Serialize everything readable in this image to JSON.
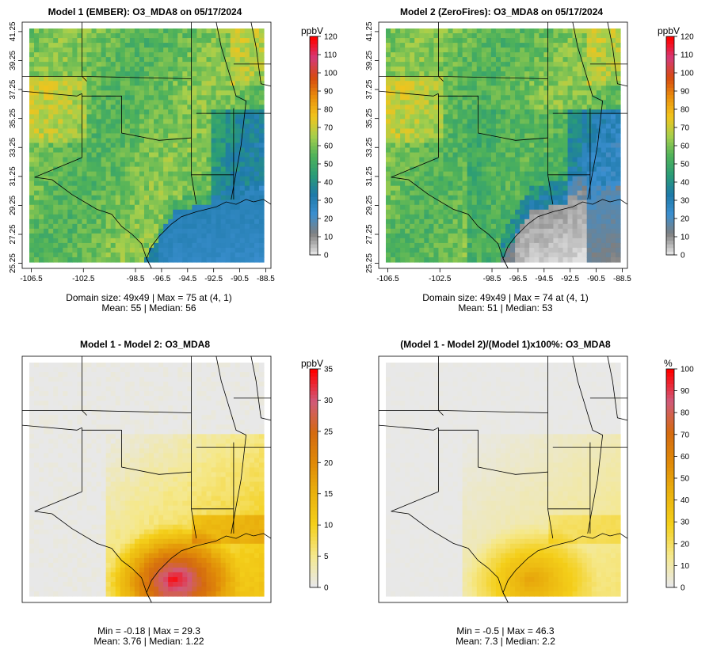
{
  "colors": {
    "abs_scale": [
      "#e0e0e0",
      "#7f7f7f",
      "#3b8fd0",
      "#1e7aa8",
      "#2a9c77",
      "#4fb25a",
      "#a6cf4c",
      "#f2c41c",
      "#ea8f0c",
      "#d64a10",
      "#d43a78",
      "#ff0000"
    ],
    "diff_scale": [
      "#e8e8e8",
      "#f5e88a",
      "#f4cf1a",
      "#eab20e",
      "#e08a08",
      "#d46a10",
      "#d05a7a",
      "#ff0000"
    ]
  },
  "panels": [
    {
      "id": "m1",
      "title": "Model 1 (EMBER): O3_MDA8 on 05/17/2024",
      "unit": "ppbV",
      "stats_line1": "Domain size: 49x49 | Max = 75 at (4, 1)",
      "stats_line2": "Mean: 55 |  Median: 56",
      "chart_data": {
        "type": "heatmap",
        "variable": "O3_MDA8",
        "units": "ppbV",
        "grid": [
          49,
          49
        ],
        "max": 75,
        "max_location": [
          4,
          1
        ],
        "mean": 55,
        "median": 56,
        "colorbar_ticks": [
          0,
          10,
          20,
          30,
          40,
          50,
          60,
          70,
          80,
          90,
          100,
          110,
          120
        ],
        "x_ticks": [
          "-106.5",
          "-102.5",
          "-98.5",
          "-96.5",
          "-94.5",
          "-92.5",
          "-90.5",
          "-88.5"
        ],
        "y_ticks": [
          "25.25",
          "27.25",
          "29.25",
          "31.25",
          "33.25",
          "35.25",
          "37.25",
          "39.25",
          "41.25"
        ]
      }
    },
    {
      "id": "m2",
      "title": "Model 2 (ZeroFires): O3_MDA8 on 05/17/2024",
      "unit": "ppbV",
      "stats_line1": "Domain size: 49x49 | Max = 74 at (4, 1)",
      "stats_line2": "Mean: 51 |  Median: 53",
      "chart_data": {
        "type": "heatmap",
        "variable": "O3_MDA8",
        "units": "ppbV",
        "grid": [
          49,
          49
        ],
        "max": 74,
        "max_location": [
          4,
          1
        ],
        "mean": 51,
        "median": 53,
        "colorbar_ticks": [
          0,
          10,
          20,
          30,
          40,
          50,
          60,
          70,
          80,
          90,
          100,
          110,
          120
        ],
        "x_ticks": [
          "-106.5",
          "-102.5",
          "-98.5",
          "-96.5",
          "-94.5",
          "-92.5",
          "-90.5",
          "-88.5"
        ],
        "y_ticks": [
          "25.25",
          "27.25",
          "29.25",
          "31.25",
          "33.25",
          "35.25",
          "37.25",
          "39.25",
          "41.25"
        ]
      }
    },
    {
      "id": "diff",
      "title": "Model 1 - Model 2: O3_MDA8",
      "unit": "ppbV",
      "stats_line1": "Min = -0.18 | Max = 29.3",
      "stats_line2": "Mean: 3.76 |  Median: 1.22",
      "chart_data": {
        "type": "heatmap",
        "variable": "O3_MDA8 difference",
        "units": "ppbV",
        "min": -0.18,
        "max": 29.3,
        "mean": 3.76,
        "median": 1.22,
        "colorbar_ticks": [
          0,
          5,
          10,
          15,
          20,
          25,
          30,
          35
        ]
      }
    },
    {
      "id": "pct",
      "title": "(Model 1 - Model 2)/(Model 1)x100%: O3_MDA8",
      "unit": "%",
      "stats_line1": "Min = -0.5 | Max = 46.3",
      "stats_line2": "Mean: 7.3 |  Median: 2.2",
      "chart_data": {
        "type": "heatmap",
        "variable": "O3_MDA8 percent difference",
        "units": "%",
        "min": -0.5,
        "max": 46.3,
        "mean": 7.3,
        "median": 2.2,
        "colorbar_ticks": [
          0,
          10,
          20,
          30,
          40,
          50,
          60,
          70,
          80,
          90,
          100
        ]
      }
    }
  ]
}
